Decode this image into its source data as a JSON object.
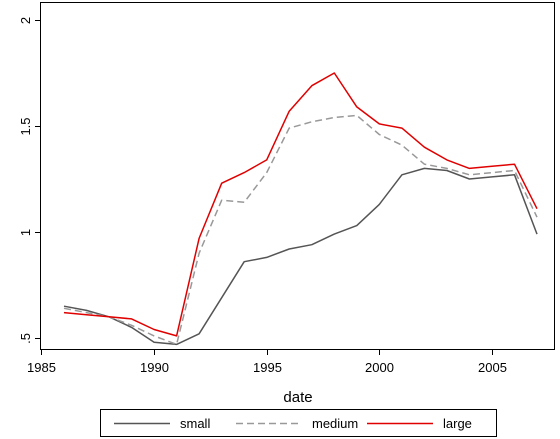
{
  "chart_data": {
    "type": "line",
    "title": "",
    "xlabel": "date",
    "ylabel": "",
    "xlim": [
      1986,
      2007
    ],
    "ylim": [
      0.5,
      2
    ],
    "xticks": [
      1985,
      1990,
      1995,
      2000,
      2005
    ],
    "xtick_labels": [
      "1985",
      "1990",
      "1995",
      "2000",
      "2005"
    ],
    "yticks": [
      0.5,
      1,
      1.5,
      2
    ],
    "ytick_labels": [
      ".5",
      "1",
      "1.5",
      "2"
    ],
    "grid": false,
    "legend_position": "bottom",
    "x": [
      1986,
      1987,
      1988,
      1989,
      1990,
      1991,
      1992,
      1993,
      1994,
      1995,
      1996,
      1997,
      1998,
      1999,
      2000,
      2001,
      2002,
      2003,
      2004,
      2005,
      2006,
      2007
    ],
    "series": [
      {
        "name": "small",
        "color": "#555555",
        "dash": "solid",
        "values": [
          0.65,
          0.63,
          0.6,
          0.55,
          0.48,
          0.47,
          0.52,
          0.69,
          0.86,
          0.88,
          0.92,
          0.94,
          0.99,
          1.03,
          1.13,
          1.27,
          1.3,
          1.29,
          1.25,
          1.26,
          1.27,
          0.99
        ]
      },
      {
        "name": "medium",
        "color": "#999999",
        "dash": "dashed",
        "values": [
          0.64,
          0.62,
          0.6,
          0.56,
          0.51,
          0.47,
          0.9,
          1.15,
          1.14,
          1.28,
          1.49,
          1.52,
          1.54,
          1.55,
          1.46,
          1.41,
          1.32,
          1.3,
          1.27,
          1.28,
          1.29,
          1.07
        ]
      },
      {
        "name": "large",
        "color": "#e00000",
        "dash": "solid",
        "values": [
          0.62,
          0.61,
          0.6,
          0.59,
          0.54,
          0.51,
          0.97,
          1.23,
          1.28,
          1.34,
          1.57,
          1.69,
          1.75,
          1.59,
          1.51,
          1.49,
          1.4,
          1.34,
          1.3,
          1.31,
          1.32,
          1.11
        ]
      }
    ]
  }
}
